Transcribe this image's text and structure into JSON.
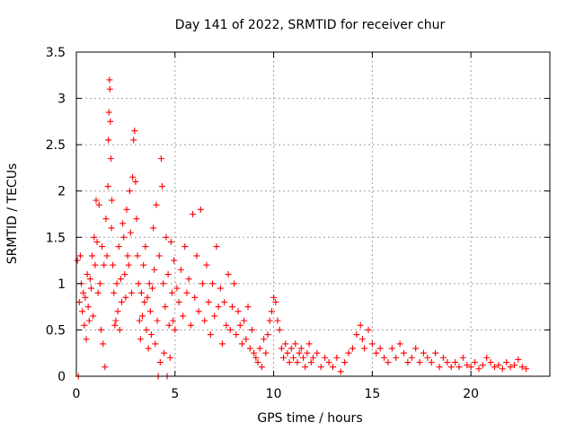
{
  "chart_data": {
    "type": "scatter",
    "title": "Day 141 of 2022, SRMTID for receiver chur",
    "xlabel": "GPS time / hours",
    "ylabel": "SRMTID / TECUs",
    "xlim": [
      0,
      24
    ],
    "ylim": [
      0,
      3.5
    ],
    "xticks": [
      0,
      5,
      10,
      15,
      20
    ],
    "xtick_labels": [
      "0",
      "5",
      "10",
      "15",
      "20"
    ],
    "yticks": [
      0,
      0.5,
      1,
      1.5,
      2,
      2.5,
      3,
      3.5
    ],
    "ytick_labels": [
      "0",
      "0.5",
      "1",
      "1.5",
      "2",
      "2.5",
      "3",
      "3.5"
    ],
    "grid": true,
    "marker": "+",
    "color": "#ff0000",
    "series": [
      {
        "name": "SRMTID",
        "points": [
          [
            0.05,
            1.25
          ],
          [
            0.1,
            0.0
          ],
          [
            0.15,
            0.8
          ],
          [
            0.2,
            1.3
          ],
          [
            0.25,
            1.0
          ],
          [
            0.3,
            0.7
          ],
          [
            0.35,
            0.9
          ],
          [
            0.4,
            0.55
          ],
          [
            0.45,
            0.85
          ],
          [
            0.5,
            0.4
          ],
          [
            0.55,
            1.1
          ],
          [
            0.6,
            0.75
          ],
          [
            0.65,
            0.6
          ],
          [
            0.7,
            1.05
          ],
          [
            0.75,
            0.95
          ],
          [
            0.8,
            1.3
          ],
          [
            0.85,
            0.65
          ],
          [
            0.9,
            1.5
          ],
          [
            0.95,
            1.2
          ],
          [
            1.0,
            1.9
          ],
          [
            1.05,
            1.45
          ],
          [
            1.1,
            0.9
          ],
          [
            1.15,
            1.85
          ],
          [
            1.2,
            1.0
          ],
          [
            1.25,
            0.5
          ],
          [
            1.3,
            1.4
          ],
          [
            1.35,
            0.35
          ],
          [
            1.4,
            1.2
          ],
          [
            1.45,
            0.1
          ],
          [
            1.5,
            1.7
          ],
          [
            1.55,
            1.3
          ],
          [
            1.6,
            2.05
          ],
          [
            1.62,
            2.55
          ],
          [
            1.65,
            2.85
          ],
          [
            1.68,
            3.2
          ],
          [
            1.7,
            3.1
          ],
          [
            1.72,
            2.75
          ],
          [
            1.75,
            2.35
          ],
          [
            1.78,
            1.6
          ],
          [
            1.8,
            1.9
          ],
          [
            1.85,
            1.2
          ],
          [
            1.9,
            0.9
          ],
          [
            1.95,
            0.55
          ],
          [
            2.0,
            0.6
          ],
          [
            2.05,
            1.0
          ],
          [
            2.1,
            0.7
          ],
          [
            2.15,
            1.4
          ],
          [
            2.2,
            0.5
          ],
          [
            2.25,
            1.05
          ],
          [
            2.3,
            0.8
          ],
          [
            2.35,
            1.65
          ],
          [
            2.4,
            1.5
          ],
          [
            2.45,
            1.1
          ],
          [
            2.5,
            0.85
          ],
          [
            2.55,
            1.8
          ],
          [
            2.6,
            1.3
          ],
          [
            2.65,
            1.2
          ],
          [
            2.7,
            2.0
          ],
          [
            2.75,
            1.55
          ],
          [
            2.8,
            0.9
          ],
          [
            2.85,
            2.15
          ],
          [
            2.9,
            2.55
          ],
          [
            2.95,
            2.65
          ],
          [
            3.0,
            2.1
          ],
          [
            3.05,
            1.7
          ],
          [
            3.1,
            1.3
          ],
          [
            3.15,
            1.0
          ],
          [
            3.2,
            0.6
          ],
          [
            3.25,
            0.4
          ],
          [
            3.3,
            0.9
          ],
          [
            3.35,
            0.65
          ],
          [
            3.4,
            1.2
          ],
          [
            3.45,
            0.8
          ],
          [
            3.5,
            1.4
          ],
          [
            3.55,
            0.5
          ],
          [
            3.6,
            0.85
          ],
          [
            3.65,
            0.3
          ],
          [
            3.7,
            1.0
          ],
          [
            3.75,
            0.7
          ],
          [
            3.8,
            0.45
          ],
          [
            3.85,
            0.95
          ],
          [
            3.9,
            1.6
          ],
          [
            3.95,
            1.15
          ],
          [
            4.0,
            0.35
          ],
          [
            4.05,
            1.85
          ],
          [
            4.1,
            0.6
          ],
          [
            4.15,
            0.0
          ],
          [
            4.2,
            1.3
          ],
          [
            4.25,
            0.15
          ],
          [
            4.3,
            2.35
          ],
          [
            4.35,
            2.05
          ],
          [
            4.4,
            1.0
          ],
          [
            4.45,
            0.25
          ],
          [
            4.5,
            0.75
          ],
          [
            4.55,
            1.5
          ],
          [
            4.6,
            0.0
          ],
          [
            4.65,
            1.1
          ],
          [
            4.7,
            0.55
          ],
          [
            4.75,
            0.2
          ],
          [
            4.8,
            1.45
          ],
          [
            4.85,
            0.9
          ],
          [
            4.9,
            0.6
          ],
          [
            4.95,
            1.25
          ],
          [
            5.0,
            0.5
          ],
          [
            5.1,
            0.95
          ],
          [
            5.2,
            0.8
          ],
          [
            5.3,
            1.15
          ],
          [
            5.4,
            0.65
          ],
          [
            5.5,
            1.4
          ],
          [
            5.6,
            0.9
          ],
          [
            5.7,
            1.05
          ],
          [
            5.8,
            0.55
          ],
          [
            5.9,
            1.75
          ],
          [
            6.0,
            0.85
          ],
          [
            6.1,
            1.3
          ],
          [
            6.2,
            0.7
          ],
          [
            6.3,
            1.8
          ],
          [
            6.4,
            1.0
          ],
          [
            6.5,
            0.6
          ],
          [
            6.6,
            1.2
          ],
          [
            6.7,
            0.8
          ],
          [
            6.8,
            0.45
          ],
          [
            6.9,
            1.0
          ],
          [
            7.0,
            0.65
          ],
          [
            7.1,
            1.4
          ],
          [
            7.2,
            0.75
          ],
          [
            7.3,
            0.95
          ],
          [
            7.4,
            0.35
          ],
          [
            7.5,
            0.8
          ],
          [
            7.6,
            0.55
          ],
          [
            7.7,
            1.1
          ],
          [
            7.8,
            0.5
          ],
          [
            7.9,
            0.75
          ],
          [
            8.0,
            1.0
          ],
          [
            8.1,
            0.45
          ],
          [
            8.2,
            0.7
          ],
          [
            8.3,
            0.55
          ],
          [
            8.4,
            0.35
          ],
          [
            8.5,
            0.6
          ],
          [
            8.6,
            0.4
          ],
          [
            8.7,
            0.75
          ],
          [
            8.8,
            0.3
          ],
          [
            8.9,
            0.5
          ],
          [
            9.0,
            0.25
          ],
          [
            9.1,
            0.2
          ],
          [
            9.2,
            0.15
          ],
          [
            9.3,
            0.3
          ],
          [
            9.4,
            0.1
          ],
          [
            9.5,
            0.4
          ],
          [
            9.6,
            0.25
          ],
          [
            9.7,
            0.45
          ],
          [
            9.8,
            0.6
          ],
          [
            9.9,
            0.7
          ],
          [
            10.0,
            0.85
          ],
          [
            10.1,
            0.8
          ],
          [
            10.2,
            0.6
          ],
          [
            10.3,
            0.5
          ],
          [
            10.4,
            0.3
          ],
          [
            10.5,
            0.2
          ],
          [
            10.6,
            0.35
          ],
          [
            10.7,
            0.25
          ],
          [
            10.8,
            0.15
          ],
          [
            10.9,
            0.3
          ],
          [
            11.0,
            0.2
          ],
          [
            11.1,
            0.35
          ],
          [
            11.2,
            0.15
          ],
          [
            11.3,
            0.25
          ],
          [
            11.4,
            0.3
          ],
          [
            11.5,
            0.2
          ],
          [
            11.6,
            0.1
          ],
          [
            11.7,
            0.25
          ],
          [
            11.8,
            0.35
          ],
          [
            11.9,
            0.15
          ],
          [
            12.0,
            0.2
          ],
          [
            12.2,
            0.25
          ],
          [
            12.4,
            0.1
          ],
          [
            12.6,
            0.2
          ],
          [
            12.8,
            0.15
          ],
          [
            13.0,
            0.1
          ],
          [
            13.2,
            0.2
          ],
          [
            13.4,
            0.05
          ],
          [
            13.6,
            0.15
          ],
          [
            13.8,
            0.25
          ],
          [
            14.0,
            0.3
          ],
          [
            14.2,
            0.45
          ],
          [
            14.4,
            0.55
          ],
          [
            14.5,
            0.4
          ],
          [
            14.6,
            0.3
          ],
          [
            14.8,
            0.5
          ],
          [
            15.0,
            0.35
          ],
          [
            15.2,
            0.25
          ],
          [
            15.4,
            0.3
          ],
          [
            15.6,
            0.2
          ],
          [
            15.8,
            0.15
          ],
          [
            16.0,
            0.3
          ],
          [
            16.2,
            0.2
          ],
          [
            16.4,
            0.35
          ],
          [
            16.6,
            0.25
          ],
          [
            16.8,
            0.15
          ],
          [
            17.0,
            0.2
          ],
          [
            17.2,
            0.3
          ],
          [
            17.4,
            0.15
          ],
          [
            17.6,
            0.25
          ],
          [
            17.8,
            0.2
          ],
          [
            18.0,
            0.15
          ],
          [
            18.2,
            0.25
          ],
          [
            18.4,
            0.1
          ],
          [
            18.6,
            0.2
          ],
          [
            18.8,
            0.15
          ],
          [
            19.0,
            0.1
          ],
          [
            19.2,
            0.15
          ],
          [
            19.4,
            0.1
          ],
          [
            19.6,
            0.2
          ],
          [
            19.8,
            0.12
          ],
          [
            20.0,
            0.1
          ],
          [
            20.2,
            0.15
          ],
          [
            20.4,
            0.08
          ],
          [
            20.6,
            0.12
          ],
          [
            20.8,
            0.2
          ],
          [
            21.0,
            0.15
          ],
          [
            21.2,
            0.1
          ],
          [
            21.4,
            0.12
          ],
          [
            21.6,
            0.08
          ],
          [
            21.8,
            0.15
          ],
          [
            22.0,
            0.1
          ],
          [
            22.2,
            0.12
          ],
          [
            22.4,
            0.18
          ],
          [
            22.6,
            0.1
          ],
          [
            22.8,
            0.08
          ]
        ]
      }
    ]
  }
}
